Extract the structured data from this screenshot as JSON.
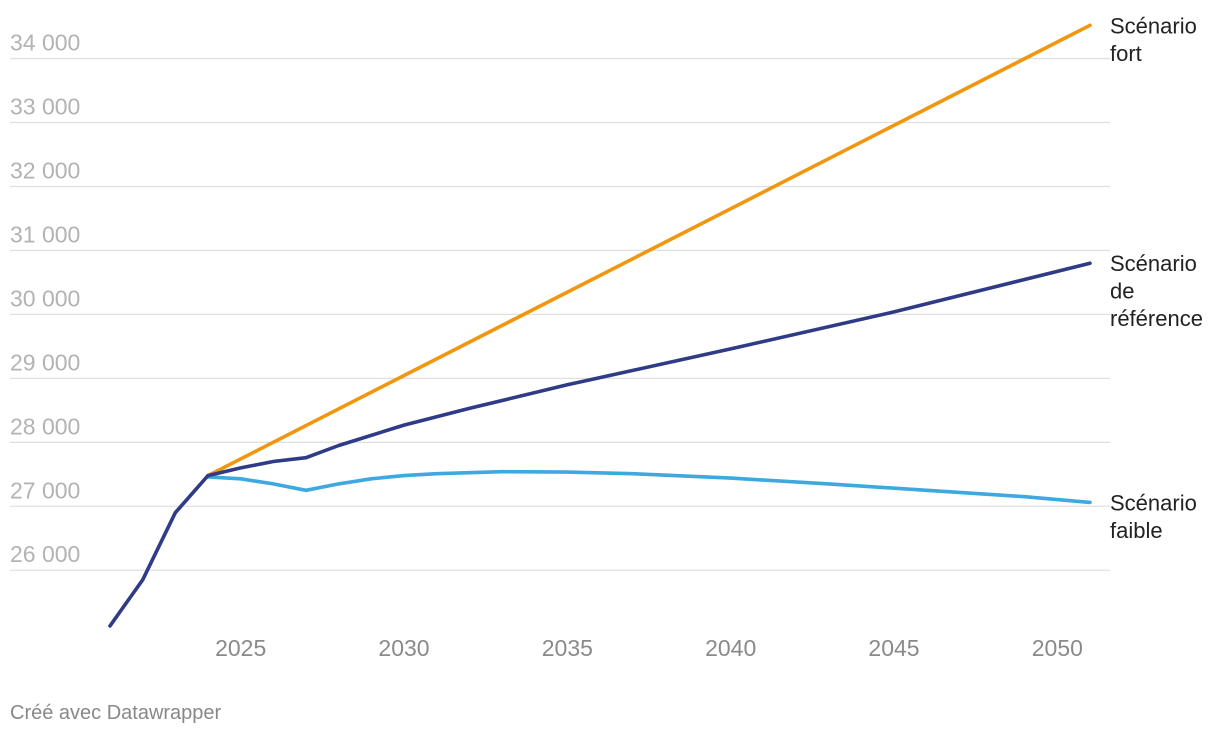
{
  "chart_data": {
    "type": "line",
    "title": "",
    "xlabel": "",
    "ylabel": "",
    "xlim": [
      2021,
      2051
    ],
    "ylim": [
      25000,
      34500
    ],
    "y_ticks": [
      26000,
      27000,
      28000,
      29000,
      30000,
      31000,
      32000,
      33000,
      34000
    ],
    "y_tick_labels": [
      "26 000",
      "27 000",
      "28 000",
      "29 000",
      "30 000",
      "31 000",
      "32 000",
      "33 000",
      "34 000"
    ],
    "x_ticks": [
      2025,
      2030,
      2035,
      2040,
      2045,
      2050
    ],
    "x_tick_labels": [
      "2025",
      "2030",
      "2035",
      "2040",
      "2045",
      "2050"
    ],
    "grid": "horizontal",
    "legend": "direct labels at line ends",
    "series": [
      {
        "key": "historique",
        "color": "#2f3b86",
        "x": [
          2021,
          2022,
          2023,
          2024
        ],
        "y": [
          25130,
          25850,
          26900,
          27480
        ]
      },
      {
        "key": "fort",
        "label_lines": [
          "Scénario",
          "fort"
        ],
        "color": "#f0960f",
        "x": [
          2024,
          2051
        ],
        "y": [
          27480,
          34520
        ]
      },
      {
        "key": "reference",
        "label_lines": [
          "Scénario",
          "de",
          "référence"
        ],
        "color": "#2f3b86",
        "x": [
          2024,
          2025,
          2026,
          2027,
          2028,
          2030,
          2032,
          2035,
          2040,
          2045,
          2051
        ],
        "y": [
          27480,
          27600,
          27700,
          27760,
          27950,
          28270,
          28530,
          28900,
          29460,
          30040,
          30800
        ]
      },
      {
        "key": "faible",
        "label_lines": [
          "Scénario",
          "faible"
        ],
        "color": "#3da9e0",
        "x": [
          2024,
          2025,
          2026,
          2027,
          2028,
          2029,
          2030,
          2031,
          2033,
          2035,
          2037,
          2040,
          2043,
          2046,
          2049,
          2051
        ],
        "y": [
          27460,
          27430,
          27350,
          27250,
          27350,
          27430,
          27480,
          27510,
          27540,
          27535,
          27510,
          27440,
          27350,
          27250,
          27150,
          27060
        ]
      }
    ]
  },
  "footer": {
    "credit": "Créé avec Datawrapper"
  }
}
